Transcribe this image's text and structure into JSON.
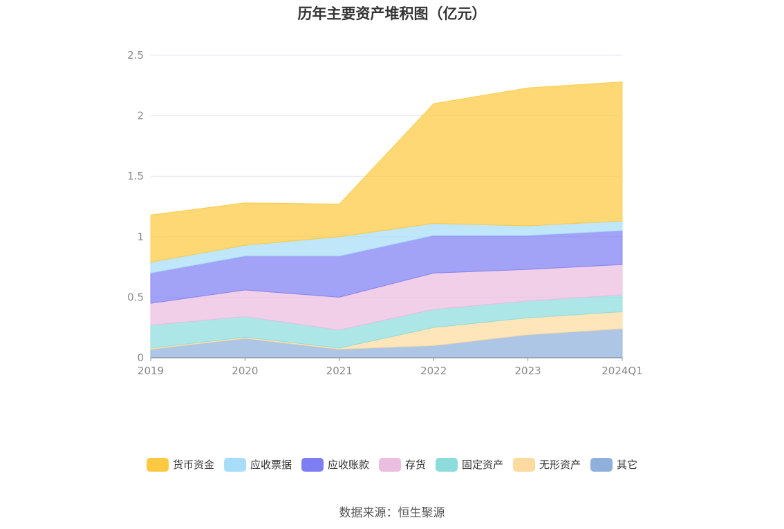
{
  "chart_data": {
    "type": "area",
    "stacked": true,
    "title": "历年主要资产堆积图（亿元）",
    "categories": [
      "2019",
      "2020",
      "2021",
      "2022",
      "2023",
      "2024Q1"
    ],
    "ylim": [
      0,
      2.5
    ],
    "yticks": [
      "0",
      "0.5",
      "1",
      "1.5",
      "2",
      "2.5"
    ],
    "grid": true,
    "legend_position": "bottom",
    "series": [
      {
        "name": "其它",
        "color": "#8fb0dc",
        "values": [
          0.07,
          0.16,
          0.07,
          0.1,
          0.19,
          0.24
        ]
      },
      {
        "name": "无形资产",
        "color": "#fddba0",
        "values": [
          0.01,
          0.01,
          0.01,
          0.15,
          0.14,
          0.14
        ]
      },
      {
        "name": "固定资产",
        "color": "#8ddcdc",
        "values": [
          0.19,
          0.17,
          0.15,
          0.15,
          0.14,
          0.14
        ]
      },
      {
        "name": "存货",
        "color": "#ebbde0",
        "values": [
          0.18,
          0.22,
          0.27,
          0.3,
          0.26,
          0.25
        ]
      },
      {
        "name": "应收账款",
        "color": "#7e7ef2",
        "values": [
          0.25,
          0.28,
          0.34,
          0.31,
          0.28,
          0.28
        ]
      },
      {
        "name": "应收票据",
        "color": "#a7ddf8",
        "values": [
          0.09,
          0.09,
          0.16,
          0.1,
          0.08,
          0.08
        ]
      },
      {
        "name": "货币资金",
        "color": "#fcc940",
        "values": [
          0.39,
          0.35,
          0.27,
          0.99,
          1.14,
          1.15
        ]
      }
    ],
    "legend_order": [
      "货币资金",
      "应收票据",
      "应收账款",
      "存货",
      "固定资产",
      "无形资产",
      "其它"
    ]
  },
  "source": "数据来源：恒生聚源"
}
